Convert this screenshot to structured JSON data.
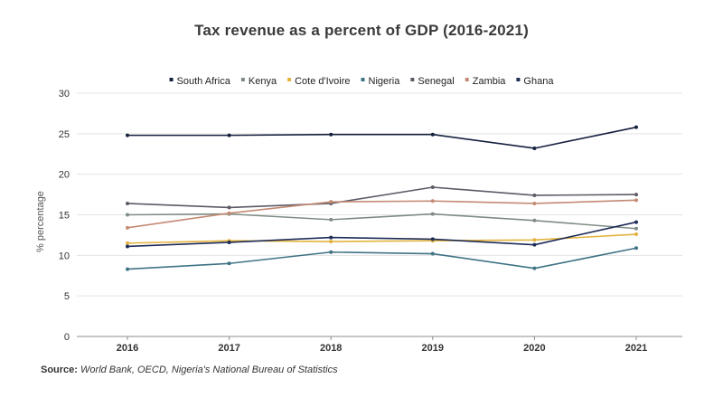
{
  "chart_data": {
    "type": "line",
    "title": "Tax revenue as a percent of GDP (2016-2021)",
    "xlabel": "",
    "ylabel": "% percentage",
    "x": [
      "2016",
      "2017",
      "2018",
      "2019",
      "2020",
      "2021"
    ],
    "ylim": [
      0,
      30
    ],
    "yticks": [
      "0",
      "5",
      "10",
      "15",
      "20",
      "25",
      "30"
    ],
    "grid": true,
    "legend_position": "top",
    "series": [
      {
        "name": "South Africa",
        "color": "#15203f",
        "values": [
          24.8,
          24.8,
          24.9,
          24.9,
          23.2,
          25.8
        ]
      },
      {
        "name": "Kenya",
        "color": "#7f8c84",
        "values": [
          15.0,
          15.1,
          14.4,
          15.1,
          14.3,
          13.3
        ]
      },
      {
        "name": "Cote d'Ivoire",
        "color": "#e3b23c",
        "values": [
          11.5,
          11.8,
          11.7,
          11.8,
          11.9,
          12.6
        ]
      },
      {
        "name": "Nigeria",
        "color": "#3f7385",
        "values": [
          8.3,
          9.0,
          10.4,
          10.2,
          8.4,
          10.9
        ]
      },
      {
        "name": "Senegal",
        "color": "#5e5a66",
        "values": [
          16.4,
          15.9,
          16.4,
          18.4,
          17.4,
          17.5
        ]
      },
      {
        "name": "Zambia",
        "color": "#c48a74",
        "values": [
          13.4,
          15.2,
          16.6,
          16.7,
          16.4,
          16.8
        ]
      },
      {
        "name": "Ghana",
        "color": "#1e2c57",
        "values": [
          11.1,
          11.6,
          12.2,
          12.0,
          11.3,
          14.1
        ]
      }
    ]
  },
  "source": {
    "label": "Source:",
    "text": "World Bank, OECD, Nigeria's National Bureau of Statistics"
  }
}
